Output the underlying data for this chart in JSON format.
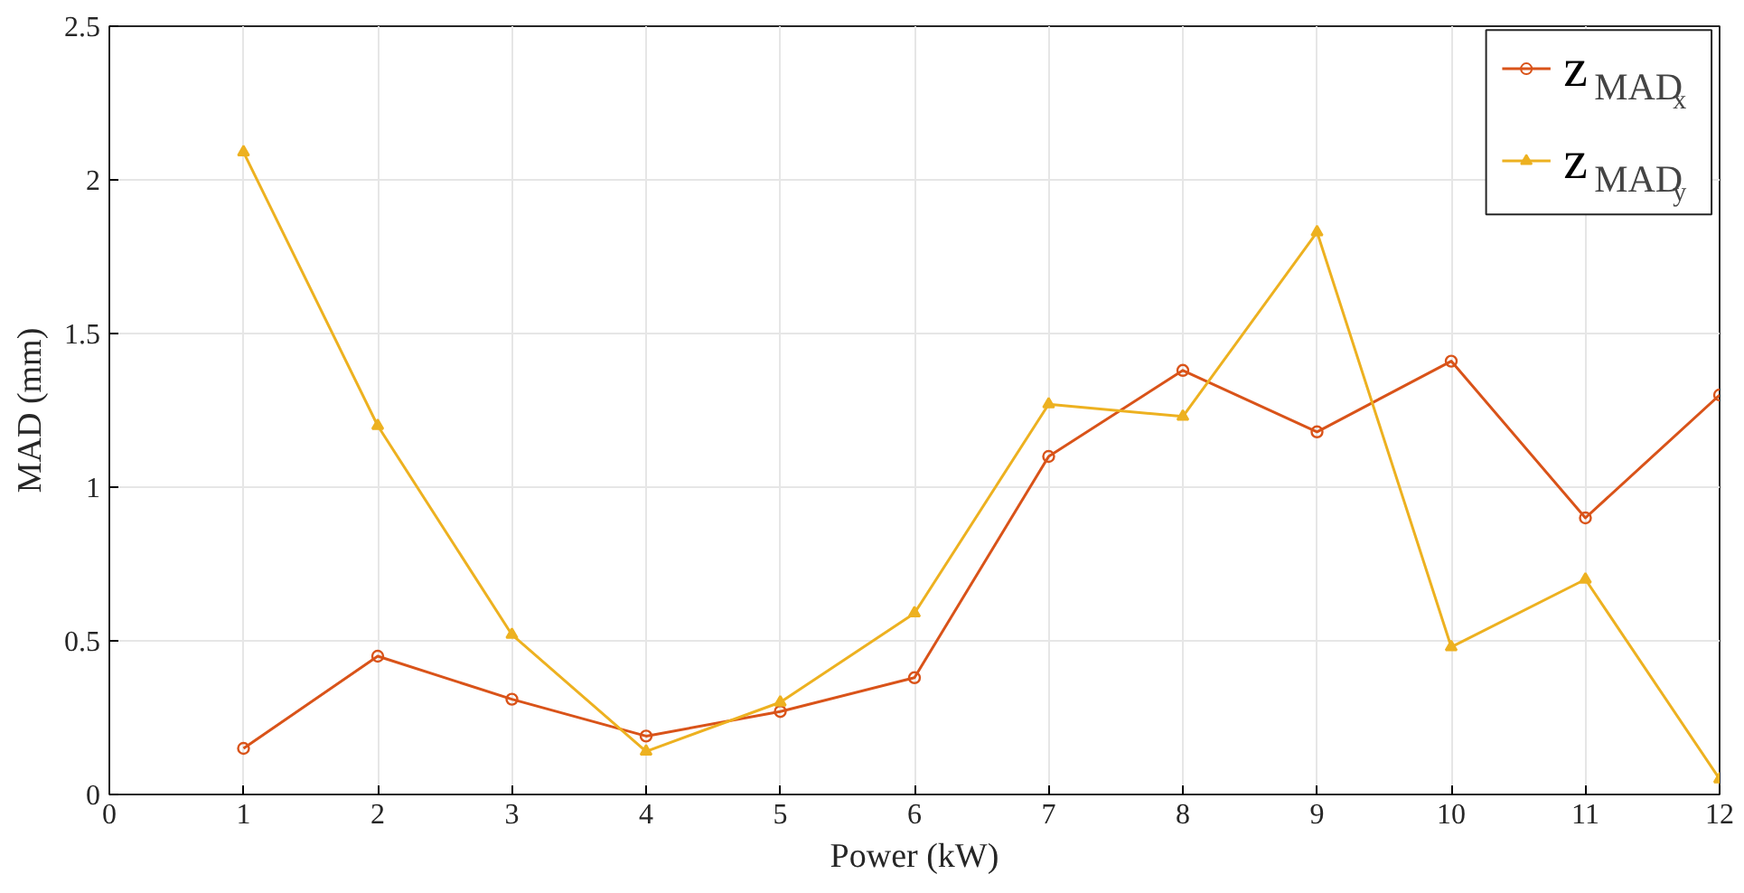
{
  "chart_data": {
    "type": "line",
    "xlabel": "Power (kW)",
    "ylabel": "MAD (mm)",
    "x": [
      1,
      2,
      3,
      4,
      5,
      6,
      7,
      8,
      9,
      10,
      11,
      12
    ],
    "series": [
      {
        "name": "z$_{MADx}$",
        "color": "#d95319",
        "marker": "circle",
        "values": [
          0.15,
          0.45,
          0.31,
          0.19,
          0.27,
          0.38,
          1.1,
          1.38,
          1.18,
          1.41,
          0.9,
          1.3
        ]
      },
      {
        "name": "z$_{MADy}$",
        "color": "#edb120",
        "marker": "triangle",
        "values": [
          2.09,
          1.2,
          0.52,
          0.14,
          0.3,
          0.59,
          1.27,
          1.23,
          1.83,
          0.48,
          0.7,
          0.05
        ]
      }
    ],
    "xlim": [
      0,
      12
    ],
    "ylim": [
      0,
      2.5
    ],
    "xticks": [
      0,
      1,
      2,
      3,
      4,
      5,
      6,
      7,
      8,
      9,
      10,
      11,
      12
    ],
    "yticks": [
      0,
      0.5,
      1,
      1.5,
      2,
      2.5
    ],
    "grid": true,
    "legend": "top right",
    "line_style": "solid"
  }
}
